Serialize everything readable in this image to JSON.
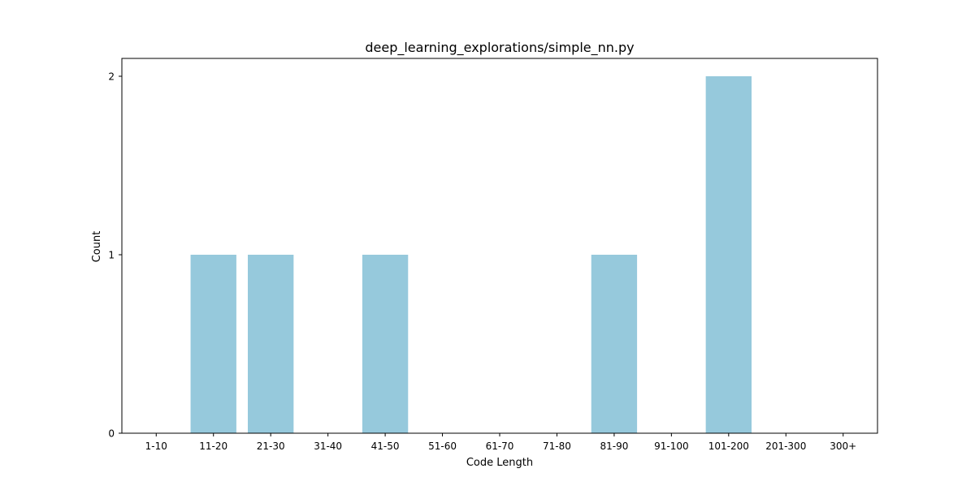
{
  "chart_data": {
    "type": "bar",
    "title": "deep_learning_explorations/simple_nn.py",
    "xlabel": "Code Length",
    "ylabel": "Count",
    "categories": [
      "1-10",
      "11-20",
      "21-30",
      "31-40",
      "41-50",
      "51-60",
      "61-70",
      "71-80",
      "81-90",
      "91-100",
      "101-200",
      "201-300",
      "300+"
    ],
    "values": [
      0,
      1,
      1,
      0,
      1,
      0,
      0,
      0,
      1,
      0,
      2,
      0,
      0
    ],
    "yticks": [
      0,
      1,
      2
    ],
    "ylim": [
      0,
      2.1
    ],
    "grid": false,
    "legend": "none",
    "bar_color": "#96c9dc"
  }
}
